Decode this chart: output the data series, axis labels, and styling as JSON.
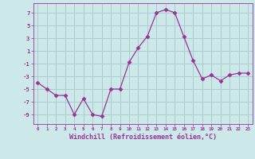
{
  "x": [
    0,
    1,
    2,
    3,
    4,
    5,
    6,
    7,
    8,
    9,
    10,
    11,
    12,
    13,
    14,
    15,
    16,
    17,
    18,
    19,
    20,
    21,
    22,
    23
  ],
  "y": [
    -4,
    -5,
    -6,
    -6,
    -9,
    -6.5,
    -9,
    -9.3,
    -5,
    -5,
    -0.8,
    1.5,
    3.3,
    7,
    7.5,
    7,
    3.2,
    -0.5,
    -3.4,
    -2.8,
    -3.7,
    -2.8,
    -2.5,
    -2.5
  ],
  "line_color": "#993399",
  "marker": "D",
  "marker_size": 2.5,
  "bg_color": "#cce8e8",
  "grid_color": "#aacccc",
  "axis_color": "#993399",
  "xlabel": "Windchill (Refroidissement éolien,°C)",
  "xlabel_fontsize": 6.0,
  "xtick_labels": [
    "0",
    "1",
    "2",
    "3",
    "4",
    "5",
    "6",
    "7",
    "8",
    "9",
    "10",
    "11",
    "12",
    "13",
    "14",
    "15",
    "16",
    "17",
    "18",
    "19",
    "20",
    "21",
    "22",
    "23"
  ],
  "ytick_values": [
    -9,
    -7,
    -5,
    -3,
    -1,
    1,
    3,
    5,
    7
  ],
  "ylim": [
    -10.5,
    8.5
  ],
  "xlim": [
    -0.5,
    23.5
  ]
}
